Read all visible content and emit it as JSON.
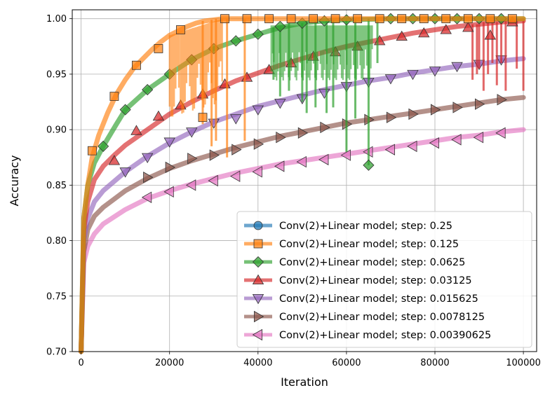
{
  "chart_data": {
    "type": "line",
    "title": "",
    "xlabel": "Iteration",
    "ylabel": "Accuracy",
    "xlim": [
      -2000,
      103000
    ],
    "ylim": [
      0.7,
      1.008
    ],
    "xticks": [
      0,
      20000,
      40000,
      60000,
      80000,
      100000
    ],
    "xtick_labels": [
      "0",
      "20000",
      "40000",
      "60000",
      "80000",
      "100000"
    ],
    "yticks": [
      0.7,
      0.75,
      0.8,
      0.85,
      0.9,
      0.95,
      1.0
    ],
    "ytick_labels": [
      "0.70",
      "0.75",
      "0.80",
      "0.85",
      "0.90",
      "0.95",
      "1.00"
    ],
    "grid": true,
    "legend_position": "bottom-right",
    "series": [
      {
        "name": "Conv(2)+Linear model; step: 0.25",
        "color": "#1f77b4",
        "marker": "circle",
        "x": [],
        "y": [],
        "marker_x": [],
        "marker_y": [],
        "drops": []
      },
      {
        "name": "Conv(2)+Linear model; step: 0.125",
        "color": "#ff7f0e",
        "marker": "square",
        "x": [
          0,
          600,
          1500,
          2500,
          4000,
          6000,
          8000,
          10000,
          12000,
          14000,
          16000,
          18000,
          20000,
          22000,
          24000,
          26000,
          28000,
          30000,
          32000,
          34000,
          100000
        ],
        "y": [
          0.7,
          0.82,
          0.85,
          0.875,
          0.895,
          0.915,
          0.932,
          0.945,
          0.956,
          0.964,
          0.972,
          0.979,
          0.985,
          0.989,
          0.993,
          0.996,
          0.998,
          0.999,
          1.0,
          1.0,
          1.0
        ],
        "marker_x": [
          2500,
          7500,
          12500,
          17500,
          22500,
          27500,
          32500,
          37500,
          42500,
          47500,
          52500,
          57500,
          62500,
          67500,
          72500,
          77500,
          82500,
          87500,
          92500,
          97500
        ],
        "marker_y": [
          0.881,
          0.93,
          0.958,
          0.973,
          0.99,
          0.911,
          1.0,
          1.0,
          1.0,
          1.0,
          1.0,
          1.0,
          1.0,
          1.0,
          1.0,
          1.0,
          1.0,
          1.0,
          1.0,
          1.0
        ],
        "drops": [
          [
            27500,
            0.905
          ],
          [
            29500,
            0.885
          ],
          [
            30500,
            0.89
          ],
          [
            33000,
            0.875
          ],
          [
            37000,
            0.89
          ]
        ]
      },
      {
        "name": "Conv(2)+Linear model; step: 0.0625",
        "color": "#2ca02c",
        "marker": "diamond",
        "x": [
          0,
          600,
          1500,
          3000,
          5000,
          8000,
          10000,
          15000,
          20000,
          25000,
          30000,
          35000,
          40000,
          45000,
          50000,
          55000,
          60000,
          70000,
          100000
        ],
        "y": [
          0.7,
          0.82,
          0.85,
          0.87,
          0.885,
          0.905,
          0.918,
          0.936,
          0.95,
          0.963,
          0.973,
          0.98,
          0.986,
          0.992,
          0.996,
          0.998,
          0.999,
          1.0,
          1.0
        ],
        "marker_x": [
          5000,
          10000,
          15000,
          20000,
          25000,
          30000,
          35000,
          40000,
          45000,
          50000,
          55000,
          60000,
          65000,
          70000,
          75000,
          80000,
          85000,
          90000,
          95000
        ],
        "marker_y": [
          0.885,
          0.918,
          0.936,
          0.95,
          0.963,
          0.973,
          0.98,
          0.986,
          0.993,
          0.996,
          0.998,
          0.999,
          0.868,
          1.0,
          1.0,
          1.0,
          1.0,
          1.0,
          1.0
        ],
        "drops": [
          [
            43500,
            0.945
          ],
          [
            45000,
            0.93
          ],
          [
            47000,
            0.935
          ],
          [
            50000,
            0.925
          ],
          [
            51000,
            0.915
          ],
          [
            53000,
            0.92
          ],
          [
            55500,
            0.915
          ],
          [
            57000,
            0.92
          ],
          [
            60000,
            0.88
          ],
          [
            62000,
            0.91
          ],
          [
            65000,
            0.868
          ],
          [
            67000,
            0.96
          ]
        ]
      },
      {
        "name": "Conv(2)+Linear model; step: 0.03125",
        "color": "#d62728",
        "marker": "triangle-up",
        "x": [
          0,
          600,
          1500,
          3000,
          5000,
          7500,
          10000,
          15000,
          20000,
          25000,
          30000,
          35000,
          40000,
          45000,
          50000,
          55000,
          60000,
          65000,
          70000,
          75000,
          80000,
          85000,
          90000,
          95000,
          100000
        ],
        "y": [
          0.7,
          0.81,
          0.835,
          0.855,
          0.867,
          0.877,
          0.886,
          0.9,
          0.914,
          0.925,
          0.935,
          0.944,
          0.951,
          0.958,
          0.964,
          0.97,
          0.975,
          0.979,
          0.983,
          0.987,
          0.99,
          0.993,
          0.995,
          0.997,
          0.998
        ],
        "marker_x": [
          7500,
          12500,
          17500,
          22500,
          27500,
          32500,
          37500,
          42500,
          47500,
          52500,
          57500,
          62500,
          67500,
          72500,
          77500,
          82500,
          87500,
          92500,
          97500
        ],
        "marker_y": [
          0.872,
          0.899,
          0.912,
          0.922,
          0.932,
          0.941,
          0.947,
          0.954,
          0.96,
          0.966,
          0.97,
          0.975,
          0.98,
          0.984,
          0.987,
          0.99,
          0.992,
          0.985,
          0.997
        ],
        "drops": [
          [
            88500,
            0.945
          ],
          [
            89500,
            0.95
          ],
          [
            90000,
            0.955
          ],
          [
            91000,
            0.935
          ],
          [
            92000,
            0.95
          ],
          [
            93000,
            0.96
          ],
          [
            94000,
            0.94
          ],
          [
            95000,
            0.96
          ],
          [
            96000,
            0.935
          ],
          [
            98500,
            0.955
          ],
          [
            100000,
            0.935
          ]
        ]
      },
      {
        "name": "Conv(2)+Linear model; step: 0.015625",
        "color": "#9467bd",
        "marker": "triangle-down",
        "x": [
          0,
          600,
          1500,
          3000,
          5000,
          10000,
          15000,
          20000,
          25000,
          30000,
          35000,
          40000,
          45000,
          50000,
          55000,
          60000,
          65000,
          70000,
          75000,
          80000,
          85000,
          90000,
          95000,
          100000
        ],
        "y": [
          0.7,
          0.8,
          0.82,
          0.835,
          0.845,
          0.862,
          0.876,
          0.888,
          0.898,
          0.907,
          0.914,
          0.921,
          0.926,
          0.931,
          0.936,
          0.94,
          0.944,
          0.947,
          0.951,
          0.954,
          0.957,
          0.959,
          0.962,
          0.964
        ],
        "marker_x": [
          10000,
          15000,
          20000,
          25000,
          30000,
          35000,
          40000,
          45000,
          50000,
          55000,
          60000,
          65000,
          70000,
          75000,
          80000,
          85000,
          90000,
          95000
        ],
        "marker_y": [
          0.862,
          0.875,
          0.889,
          0.898,
          0.906,
          0.91,
          0.918,
          0.924,
          0.928,
          0.933,
          0.939,
          0.943,
          0.946,
          0.95,
          0.953,
          0.957,
          0.959,
          0.963
        ],
        "drops": []
      },
      {
        "name": "Conv(2)+Linear model; step: 0.0078125",
        "color": "#8c564b",
        "marker": "triangle-right",
        "x": [
          0,
          600,
          1500,
          3000,
          5000,
          10000,
          15000,
          20000,
          25000,
          30000,
          35000,
          40000,
          45000,
          50000,
          55000,
          60000,
          65000,
          70000,
          75000,
          80000,
          85000,
          90000,
          95000,
          100000
        ],
        "y": [
          0.7,
          0.79,
          0.81,
          0.822,
          0.83,
          0.845,
          0.856,
          0.865,
          0.872,
          0.878,
          0.884,
          0.889,
          0.894,
          0.898,
          0.902,
          0.906,
          0.909,
          0.912,
          0.915,
          0.918,
          0.921,
          0.924,
          0.927,
          0.929
        ],
        "marker_x": [
          15000,
          20000,
          25000,
          30000,
          35000,
          40000,
          45000,
          50000,
          55000,
          60000,
          65000,
          70000,
          75000,
          80000,
          85000,
          90000,
          95000
        ],
        "marker_y": [
          0.857,
          0.866,
          0.874,
          0.877,
          0.882,
          0.887,
          0.893,
          0.897,
          0.902,
          0.905,
          0.909,
          0.911,
          0.914,
          0.918,
          0.92,
          0.923,
          0.927
        ],
        "drops": []
      },
      {
        "name": "Conv(2)+Linear model; step: 0.00390625",
        "color": "#e377c2",
        "marker": "triangle-left",
        "x": [
          0,
          600,
          1500,
          3000,
          5000,
          10000,
          15000,
          20000,
          25000,
          30000,
          35000,
          40000,
          45000,
          50000,
          55000,
          60000,
          65000,
          70000,
          75000,
          80000,
          85000,
          90000,
          95000,
          100000
        ],
        "y": [
          0.7,
          0.78,
          0.795,
          0.806,
          0.815,
          0.828,
          0.838,
          0.845,
          0.851,
          0.856,
          0.861,
          0.865,
          0.869,
          0.872,
          0.875,
          0.878,
          0.881,
          0.884,
          0.887,
          0.89,
          0.893,
          0.895,
          0.898,
          0.9
        ],
        "marker_x": [
          15000,
          20000,
          25000,
          30000,
          35000,
          40000,
          45000,
          50000,
          55000,
          60000,
          65000,
          70000,
          75000,
          80000,
          85000,
          90000,
          95000
        ],
        "marker_y": [
          0.839,
          0.844,
          0.85,
          0.854,
          0.858,
          0.862,
          0.867,
          0.871,
          0.873,
          0.877,
          0.88,
          0.882,
          0.885,
          0.888,
          0.891,
          0.893,
          0.897
        ],
        "drops": []
      }
    ]
  }
}
